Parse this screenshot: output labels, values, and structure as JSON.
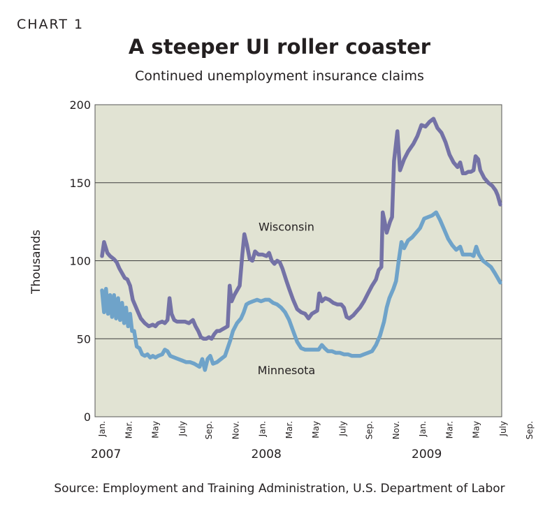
{
  "header": {
    "chart_label": "CHART 1",
    "title": "A steeper UI roller coaster",
    "subtitle": "Continued unemployment insurance claims"
  },
  "footer": {
    "source": "Source: Employment and Training Administration, U.S. Department of Labor"
  },
  "chart_data": {
    "type": "line",
    "title": "A steeper UI roller coaster",
    "subtitle": "Continued unemployment insurance claims",
    "xlabel": "",
    "ylabel": "Thousands",
    "ylim": [
      0,
      200
    ],
    "yticks": [
      0,
      50,
      100,
      150,
      200
    ],
    "grid": true,
    "plot_background": "#e1e3d3",
    "x_ticks": [
      {
        "month_index": 0,
        "label": "Jan."
      },
      {
        "month_index": 2,
        "label": "Mar."
      },
      {
        "month_index": 4,
        "label": "May"
      },
      {
        "month_index": 6,
        "label": "July"
      },
      {
        "month_index": 8,
        "label": "Sep."
      },
      {
        "month_index": 10,
        "label": "Nov."
      },
      {
        "month_index": 12,
        "label": "Jan."
      },
      {
        "month_index": 14,
        "label": "Mar."
      },
      {
        "month_index": 16,
        "label": "May"
      },
      {
        "month_index": 18,
        "label": "July"
      },
      {
        "month_index": 20,
        "label": "Sep."
      },
      {
        "month_index": 22,
        "label": "Nov."
      },
      {
        "month_index": 24,
        "label": "Jan."
      },
      {
        "month_index": 26,
        "label": "Mar."
      },
      {
        "month_index": 28,
        "label": "May"
      },
      {
        "month_index": 30,
        "label": "July"
      },
      {
        "month_index": 32,
        "label": "Sep."
      }
    ],
    "year_labels": [
      {
        "month_index": 0,
        "label": "2007"
      },
      {
        "month_index": 12,
        "label": "2008"
      },
      {
        "month_index": 24,
        "label": "2009"
      }
    ],
    "series": [
      {
        "name": "Wisconsin",
        "color": "#7472a6",
        "label_position": {
          "month_index": 13.8,
          "value": 122
        },
        "points": [
          [
            0.0,
            103
          ],
          [
            0.15,
            112
          ],
          [
            0.4,
            105
          ],
          [
            0.6,
            103
          ],
          [
            0.9,
            101
          ],
          [
            1.1,
            99
          ],
          [
            1.3,
            95
          ],
          [
            1.5,
            92
          ],
          [
            1.7,
            89
          ],
          [
            1.9,
            88
          ],
          [
            2.1,
            84
          ],
          [
            2.3,
            75
          ],
          [
            2.5,
            71
          ],
          [
            2.7,
            67
          ],
          [
            2.9,
            63
          ],
          [
            3.2,
            60
          ],
          [
            3.5,
            58
          ],
          [
            3.8,
            59
          ],
          [
            4.0,
            58
          ],
          [
            4.2,
            60
          ],
          [
            4.5,
            61
          ],
          [
            4.7,
            60
          ],
          [
            4.9,
            62
          ],
          [
            5.05,
            76
          ],
          [
            5.2,
            66
          ],
          [
            5.4,
            62
          ],
          [
            5.6,
            61
          ],
          [
            5.9,
            61
          ],
          [
            6.2,
            61
          ],
          [
            6.5,
            60
          ],
          [
            6.8,
            62
          ],
          [
            7.0,
            58
          ],
          [
            7.2,
            55
          ],
          [
            7.4,
            51
          ],
          [
            7.6,
            50
          ],
          [
            7.8,
            50
          ],
          [
            8.0,
            51
          ],
          [
            8.2,
            50
          ],
          [
            8.4,
            53
          ],
          [
            8.6,
            55
          ],
          [
            8.8,
            55
          ],
          [
            9.0,
            56
          ],
          [
            9.2,
            57
          ],
          [
            9.4,
            58
          ],
          [
            9.55,
            84
          ],
          [
            9.7,
            74
          ],
          [
            9.9,
            78
          ],
          [
            10.1,
            81
          ],
          [
            10.3,
            84
          ],
          [
            10.5,
            104
          ],
          [
            10.65,
            117
          ],
          [
            10.85,
            110
          ],
          [
            11.05,
            101
          ],
          [
            11.25,
            100
          ],
          [
            11.45,
            106
          ],
          [
            11.7,
            104
          ],
          [
            12.0,
            104
          ],
          [
            12.3,
            103
          ],
          [
            12.5,
            105
          ],
          [
            12.7,
            100
          ],
          [
            12.9,
            98
          ],
          [
            13.1,
            100
          ],
          [
            13.3,
            99
          ],
          [
            13.5,
            95
          ],
          [
            13.8,
            87
          ],
          [
            14.0,
            82
          ],
          [
            14.3,
            75
          ],
          [
            14.6,
            69
          ],
          [
            14.9,
            67
          ],
          [
            15.2,
            66
          ],
          [
            15.45,
            63
          ],
          [
            15.7,
            66
          ],
          [
            15.9,
            67
          ],
          [
            16.1,
            68
          ],
          [
            16.25,
            79
          ],
          [
            16.45,
            74
          ],
          [
            16.7,
            76
          ],
          [
            17.0,
            75
          ],
          [
            17.3,
            73
          ],
          [
            17.6,
            72
          ],
          [
            17.9,
            72
          ],
          [
            18.1,
            70
          ],
          [
            18.3,
            64
          ],
          [
            18.5,
            63
          ],
          [
            18.8,
            65
          ],
          [
            19.1,
            68
          ],
          [
            19.3,
            70
          ],
          [
            19.6,
            74
          ],
          [
            19.9,
            79
          ],
          [
            20.2,
            84
          ],
          [
            20.5,
            88
          ],
          [
            20.7,
            94
          ],
          [
            20.9,
            96
          ],
          [
            21.0,
            131
          ],
          [
            21.15,
            125
          ],
          [
            21.3,
            118
          ],
          [
            21.55,
            125
          ],
          [
            21.7,
            128
          ],
          [
            21.85,
            164
          ],
          [
            22.1,
            183
          ],
          [
            22.3,
            158
          ],
          [
            22.6,
            165
          ],
          [
            22.9,
            170
          ],
          [
            23.3,
            175
          ],
          [
            23.6,
            180
          ],
          [
            23.9,
            187
          ],
          [
            24.2,
            186
          ],
          [
            24.5,
            189
          ],
          [
            24.8,
            191
          ],
          [
            25.1,
            185
          ],
          [
            25.4,
            182
          ],
          [
            25.7,
            176
          ],
          [
            26.0,
            168
          ],
          [
            26.3,
            163
          ],
          [
            26.6,
            160
          ],
          [
            26.8,
            163
          ],
          [
            27.0,
            156
          ],
          [
            27.2,
            156
          ],
          [
            27.4,
            157
          ],
          [
            27.6,
            157
          ],
          [
            27.8,
            158
          ],
          [
            27.95,
            167
          ],
          [
            28.15,
            165
          ],
          [
            28.3,
            158
          ],
          [
            28.6,
            153
          ],
          [
            28.9,
            150
          ],
          [
            29.2,
            148
          ],
          [
            29.45,
            145
          ],
          [
            29.6,
            142
          ],
          [
            29.8,
            136
          ]
        ]
      },
      {
        "name": "Minnesota",
        "color": "#6fa3c9",
        "label_position": {
          "month_index": 13.8,
          "value": 30
        },
        "points": [
          [
            0.0,
            81
          ],
          [
            0.15,
            67
          ],
          [
            0.3,
            82
          ],
          [
            0.45,
            66
          ],
          [
            0.6,
            78
          ],
          [
            0.75,
            64
          ],
          [
            0.9,
            78
          ],
          [
            1.05,
            63
          ],
          [
            1.2,
            76
          ],
          [
            1.35,
            62
          ],
          [
            1.5,
            73
          ],
          [
            1.65,
            60
          ],
          [
            1.8,
            70
          ],
          [
            1.95,
            58
          ],
          [
            2.1,
            66
          ],
          [
            2.25,
            55
          ],
          [
            2.4,
            55
          ],
          [
            2.6,
            45
          ],
          [
            2.8,
            44
          ],
          [
            3.0,
            40
          ],
          [
            3.2,
            39
          ],
          [
            3.4,
            40
          ],
          [
            3.6,
            38
          ],
          [
            3.8,
            39
          ],
          [
            4.0,
            38
          ],
          [
            4.2,
            39
          ],
          [
            4.5,
            40
          ],
          [
            4.7,
            43
          ],
          [
            4.9,
            42
          ],
          [
            5.1,
            39
          ],
          [
            5.4,
            38
          ],
          [
            5.7,
            37
          ],
          [
            6.0,
            36
          ],
          [
            6.3,
            35
          ],
          [
            6.6,
            35
          ],
          [
            6.9,
            34
          ],
          [
            7.1,
            33
          ],
          [
            7.3,
            32
          ],
          [
            7.5,
            37
          ],
          [
            7.7,
            30
          ],
          [
            7.9,
            37
          ],
          [
            8.1,
            39
          ],
          [
            8.3,
            34
          ],
          [
            8.6,
            35
          ],
          [
            8.9,
            37
          ],
          [
            9.2,
            39
          ],
          [
            9.4,
            44
          ],
          [
            9.6,
            49
          ],
          [
            9.8,
            55
          ],
          [
            10.1,
            60
          ],
          [
            10.4,
            63
          ],
          [
            10.6,
            67
          ],
          [
            10.8,
            72
          ],
          [
            11.0,
            73
          ],
          [
            11.3,
            74
          ],
          [
            11.6,
            75
          ],
          [
            11.9,
            74
          ],
          [
            12.2,
            75
          ],
          [
            12.5,
            75
          ],
          [
            12.8,
            73
          ],
          [
            13.1,
            72
          ],
          [
            13.4,
            70
          ],
          [
            13.7,
            67
          ],
          [
            14.0,
            62
          ],
          [
            14.3,
            55
          ],
          [
            14.6,
            48
          ],
          [
            14.9,
            44
          ],
          [
            15.2,
            43
          ],
          [
            15.5,
            43
          ],
          [
            15.8,
            43
          ],
          [
            16.0,
            43
          ],
          [
            16.2,
            43
          ],
          [
            16.45,
            46
          ],
          [
            16.65,
            44
          ],
          [
            16.9,
            42
          ],
          [
            17.2,
            42
          ],
          [
            17.5,
            41
          ],
          [
            17.8,
            41
          ],
          [
            18.1,
            40
          ],
          [
            18.4,
            40
          ],
          [
            18.7,
            39
          ],
          [
            19.0,
            39
          ],
          [
            19.3,
            39
          ],
          [
            19.6,
            40
          ],
          [
            19.9,
            41
          ],
          [
            20.2,
            42
          ],
          [
            20.5,
            46
          ],
          [
            20.8,
            52
          ],
          [
            21.1,
            61
          ],
          [
            21.3,
            70
          ],
          [
            21.5,
            76
          ],
          [
            21.8,
            82
          ],
          [
            22.0,
            87
          ],
          [
            22.2,
            100
          ],
          [
            22.4,
            112
          ],
          [
            22.6,
            108
          ],
          [
            22.9,
            113
          ],
          [
            23.2,
            115
          ],
          [
            23.5,
            118
          ],
          [
            23.8,
            121
          ],
          [
            24.1,
            127
          ],
          [
            24.4,
            128
          ],
          [
            24.7,
            129
          ],
          [
            25.0,
            131
          ],
          [
            25.3,
            126
          ],
          [
            25.6,
            120
          ],
          [
            25.9,
            114
          ],
          [
            26.2,
            110
          ],
          [
            26.5,
            107
          ],
          [
            26.8,
            109
          ],
          [
            27.0,
            104
          ],
          [
            27.3,
            104
          ],
          [
            27.6,
            104
          ],
          [
            27.8,
            103
          ],
          [
            28.0,
            109
          ],
          [
            28.2,
            104
          ],
          [
            28.5,
            100
          ],
          [
            28.8,
            98
          ],
          [
            29.1,
            96
          ],
          [
            29.4,
            92
          ],
          [
            29.6,
            89
          ],
          [
            29.8,
            86
          ]
        ]
      }
    ]
  }
}
